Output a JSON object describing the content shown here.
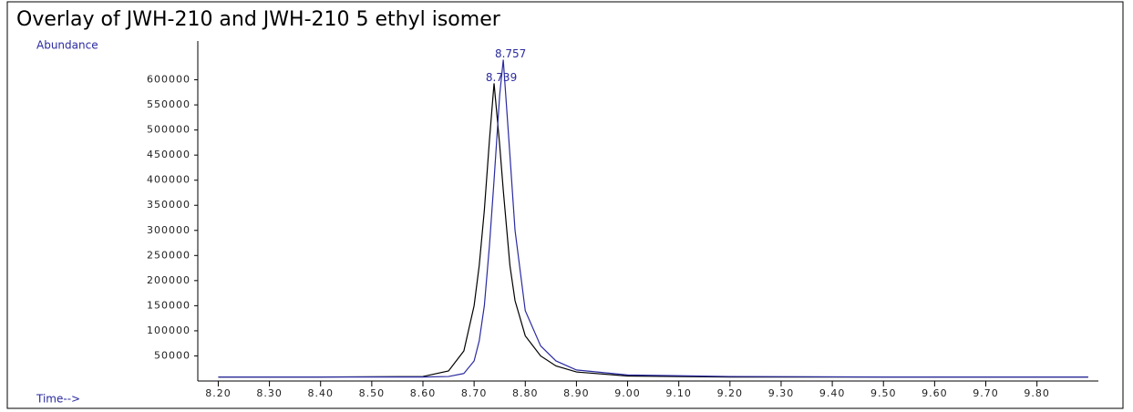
{
  "chart_data": {
    "type": "line",
    "title": "Overlay of JWH-210 and JWH-210 5 ethyl isomer",
    "y_label": "Abundance",
    "x_label": "Time-->",
    "x": [
      8.2,
      8.4,
      8.6,
      8.65,
      8.68,
      8.7,
      8.71,
      8.72,
      8.73,
      8.739,
      8.75,
      8.757,
      8.77,
      8.78,
      8.8,
      8.83,
      8.86,
      8.9,
      9.0,
      9.2,
      9.5,
      9.9
    ],
    "series": [
      {
        "color": "#000000",
        "values": [
          8000,
          8000,
          9000,
          20000,
          60000,
          150000,
          230000,
          340000,
          480000,
          593000,
          470000,
          380000,
          230000,
          160000,
          90000,
          50000,
          30000,
          18000,
          10000,
          8000,
          8000,
          8000
        ]
      },
      {
        "color": "#2a2aa0",
        "values": [
          8000,
          8000,
          8000,
          9000,
          15000,
          40000,
          80000,
          150000,
          270000,
          400000,
          570000,
          640000,
          450000,
          300000,
          140000,
          70000,
          40000,
          22000,
          12000,
          9000,
          8000,
          8000
        ]
      }
    ],
    "annotations": [
      {
        "label": "8.757",
        "x": 8.757,
        "y": 640000
      },
      {
        "label": "8.739",
        "x": 8.739,
        "y": 593000
      }
    ],
    "xlim": [
      8.16,
      9.92
    ],
    "ylim": [
      0,
      650000
    ],
    "xticks": [
      {
        "value": 8.2,
        "label": "8.20"
      },
      {
        "value": 8.3,
        "label": "8.30"
      },
      {
        "value": 8.4,
        "label": "8.40"
      },
      {
        "value": 8.5,
        "label": "8.50"
      },
      {
        "value": 8.6,
        "label": "8.60"
      },
      {
        "value": 8.7,
        "label": "8.70"
      },
      {
        "value": 8.8,
        "label": "8.80"
      },
      {
        "value": 8.9,
        "label": "8.90"
      },
      {
        "value": 9.0,
        "label": "9.00"
      },
      {
        "value": 9.1,
        "label": "9.10"
      },
      {
        "value": 9.2,
        "label": "9.20"
      },
      {
        "value": 9.3,
        "label": "9.30"
      },
      {
        "value": 9.4,
        "label": "9.40"
      },
      {
        "value": 9.5,
        "label": "9.50"
      },
      {
        "value": 9.6,
        "label": "9.60"
      },
      {
        "value": 9.7,
        "label": "9.70"
      },
      {
        "value": 9.8,
        "label": "9.80"
      }
    ],
    "yticks": [
      50000,
      100000,
      150000,
      200000,
      250000,
      300000,
      350000,
      400000,
      450000,
      500000,
      550000,
      600000
    ]
  }
}
